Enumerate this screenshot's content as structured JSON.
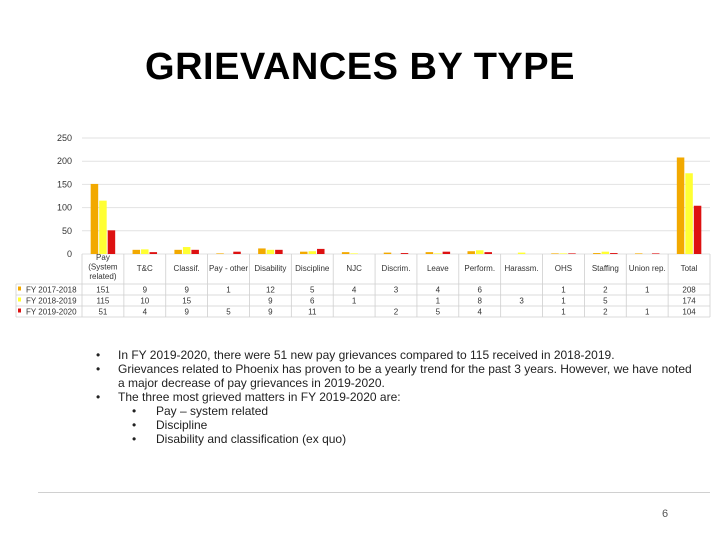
{
  "title": "GRIEVANCES BY TYPE",
  "page_number": "6",
  "chart_data": {
    "type": "bar",
    "yticks": [
      "0",
      "50",
      "100",
      "150",
      "200",
      "250"
    ],
    "ylim": [
      0,
      250
    ],
    "categories": [
      "Pay (System related)",
      "T&C",
      "Classif.",
      "Pay - other",
      "Disability",
      "Discipline",
      "NJC",
      "Discrim.",
      "Leave",
      "Perform.",
      "Harassm.",
      "OHS",
      "Staffing",
      "Union rep.",
      "Total"
    ],
    "category_lines": [
      [
        "Pay",
        "(System",
        "related)"
      ],
      [
        "T&C"
      ],
      [
        "Classif."
      ],
      [
        "Pay - other"
      ],
      [
        "Disability"
      ],
      [
        "Discipline"
      ],
      [
        "NJC"
      ],
      [
        "Discrim."
      ],
      [
        "Leave"
      ],
      [
        "Perform."
      ],
      [
        "Harassm."
      ],
      [
        "OHS"
      ],
      [
        "Staffing"
      ],
      [
        "Union rep."
      ],
      [
        "Total"
      ]
    ],
    "series": [
      {
        "name": "FY 2017-2018",
        "color": "#f2a900",
        "values": [
          151,
          9,
          9,
          1,
          12,
          5,
          4,
          3,
          4,
          6,
          null,
          1,
          2,
          1,
          208
        ],
        "labels": [
          "151",
          "9",
          "9",
          "1",
          "12",
          "5",
          "4",
          "3",
          "4",
          "6",
          "",
          "1",
          "2",
          "1",
          "208"
        ]
      },
      {
        "name": "FY 2018-2019",
        "color": "#ffff33",
        "values": [
          115,
          10,
          15,
          null,
          9,
          6,
          1,
          null,
          1,
          8,
          3,
          1,
          5,
          null,
          174
        ],
        "labels": [
          "115",
          "10",
          "15",
          "",
          "9",
          "6",
          "1",
          "",
          "1",
          "8",
          "3",
          "1",
          "5",
          "",
          "174"
        ]
      },
      {
        "name": "FY 2019-2020",
        "color": "#dd1111",
        "values": [
          51,
          4,
          9,
          5,
          9,
          11,
          null,
          2,
          5,
          4,
          null,
          1,
          2,
          1,
          104
        ],
        "labels": [
          "51",
          "4",
          "9",
          "5",
          "9",
          "11",
          "",
          "2",
          "5",
          "4",
          "",
          "1",
          "2",
          "1",
          "104"
        ]
      }
    ]
  },
  "bullets": [
    {
      "text": "In FY 2019-2020, there were 51 new pay grievances compared to 115 received in 2018-2019."
    },
    {
      "text": "Grievances related to Phoenix has proven to be a yearly trend for the past 3 years. However, we have noted a major decrease of pay grievances in 2019-2020."
    },
    {
      "text": "The three most grieved matters in FY 2019-2020 are:"
    }
  ],
  "sub_bullets": [
    {
      "text": "Pay – system related"
    },
    {
      "text": "Discipline"
    },
    {
      "text": "Disability and classification (ex quo)"
    }
  ]
}
